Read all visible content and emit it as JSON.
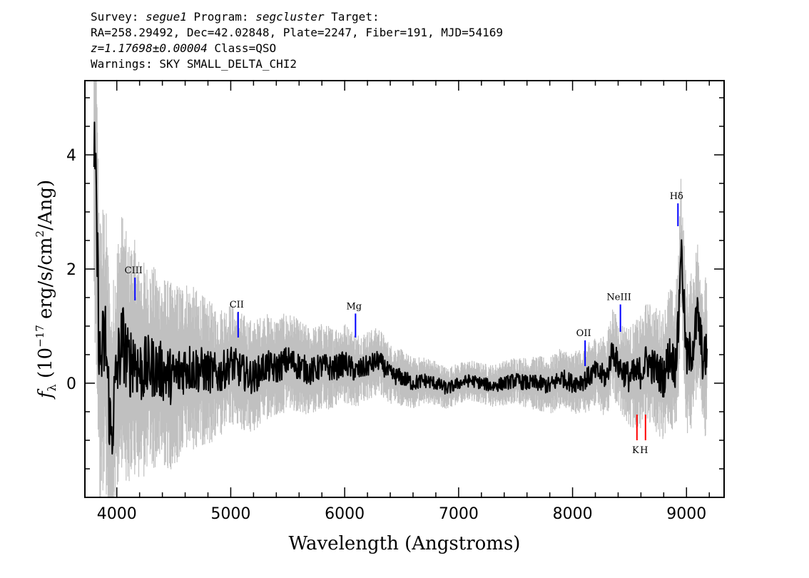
{
  "header": {
    "line1": {
      "survey_label": "Survey: ",
      "survey": "segue1",
      "program_label": " Program: ",
      "program": "segcluster",
      "target_label": " Target:"
    },
    "line2": "RA=258.29492, Dec=42.02848, Plate=2247, Fiber=191, MJD=54169",
    "line3": {
      "redshift": "z=1.17698±0.00004",
      "class": " Class=QSO"
    },
    "line4": "Warnings: SKY SMALL_DELTA_CHI2"
  },
  "chart_data": {
    "type": "line",
    "xlabel": "Wavelength (Angstroms)",
    "ylabel": "fλ (10^-17 erg/s/cm^2/Ang)",
    "ylabel_parts": {
      "f": "f",
      "lambda": "λ",
      "prefix": " (10",
      "exp1": "−17",
      "mid": " erg/s/cm",
      "exp2": "2",
      "suffix": "/Ang)"
    },
    "xlim": [
      3720,
      9330
    ],
    "ylim": [
      -2.0,
      5.3
    ],
    "x_ticks": [
      4000,
      5000,
      6000,
      7000,
      8000,
      9000
    ],
    "x_tick_labels": [
      "4000",
      "5000",
      "6000",
      "7000",
      "8000",
      "9000"
    ],
    "y_ticks": [
      0,
      2,
      4
    ],
    "y_tick_labels": [
      "0",
      "2",
      "4"
    ],
    "grid": false,
    "series": [
      {
        "role": "flux",
        "color": "#000000",
        "x": [
          3800,
          3820,
          3850,
          3900,
          3950,
          4000,
          4050,
          4100,
          4150,
          4200,
          4300,
          4400,
          4500,
          4600,
          4700,
          4800,
          4900,
          5000,
          5100,
          5200,
          5300,
          5400,
          5500,
          5600,
          5700,
          5800,
          5900,
          6000,
          6100,
          6200,
          6300,
          6400,
          6500,
          6600,
          6700,
          6800,
          6900,
          7000,
          7100,
          7200,
          7300,
          7400,
          7500,
          7600,
          7700,
          7800,
          7900,
          8000,
          8100,
          8200,
          8300,
          8350,
          8400,
          8500,
          8600,
          8650,
          8700,
          8800,
          8850,
          8900,
          8930,
          8950,
          9000,
          9050,
          9100,
          9150,
          9180
        ],
        "y": [
          4.0,
          3.0,
          0.3,
          0.8,
          -1.0,
          0.2,
          0.8,
          0.3,
          0.5,
          0.2,
          0.3,
          0.2,
          0.1,
          0.3,
          0.25,
          0.2,
          0.15,
          0.35,
          0.2,
          0.1,
          0.3,
          0.25,
          0.4,
          0.3,
          0.2,
          0.3,
          0.25,
          0.35,
          0.2,
          0.3,
          0.4,
          0.15,
          0.1,
          0.0,
          0.05,
          0.0,
          -0.1,
          0.0,
          0.05,
          0.0,
          -0.05,
          0.0,
          0.05,
          0.0,
          0.0,
          -0.05,
          0.1,
          0.0,
          0.05,
          0.2,
          0.1,
          0.6,
          0.3,
          0.1,
          0.2,
          0.4,
          0.3,
          0.1,
          0.5,
          0.3,
          1.0,
          2.5,
          0.4,
          0.6,
          1.2,
          0.3,
          0.6
        ]
      },
      {
        "role": "error",
        "color": "#c0c0c0",
        "x": [
          3800,
          3900,
          4000,
          4100,
          4200,
          4300,
          4400,
          4500,
          4600,
          4800,
          5000,
          5200,
          5400,
          5600,
          5800,
          6000,
          6200,
          6400,
          6600,
          6800,
          7000,
          7200,
          7400,
          7600,
          7800,
          8000,
          8200,
          8400,
          8600,
          8800,
          9000,
          9180
        ],
        "y": [
          1.6,
          1.4,
          1.3,
          1.2,
          1.1,
          1.0,
          0.95,
          0.9,
          0.85,
          0.7,
          0.6,
          0.55,
          0.5,
          0.45,
          0.42,
          0.4,
          0.35,
          0.3,
          0.25,
          0.22,
          0.2,
          0.2,
          0.22,
          0.25,
          0.28,
          0.3,
          0.35,
          0.45,
          0.55,
          0.65,
          0.75,
          0.8
        ]
      }
    ],
    "emission_lines": [
      {
        "label": "CIII",
        "x": 4160,
        "y1": 1.45,
        "y2": 1.85,
        "color": "#0000ff"
      },
      {
        "label": "CII",
        "x": 5065,
        "y1": 0.8,
        "y2": 1.25,
        "color": "#0000ff"
      },
      {
        "label": "Mg",
        "x": 6095,
        "y1": 0.8,
        "y2": 1.22,
        "color": "#0000ff"
      },
      {
        "label": "OII",
        "x": 8110,
        "y1": 0.3,
        "y2": 0.75,
        "color": "#0000ff"
      },
      {
        "label": "NeIII",
        "x": 8420,
        "y1": 0.9,
        "y2": 1.38,
        "color": "#0000ff"
      },
      {
        "label": "Hδ",
        "x": 8925,
        "y1": 2.75,
        "y2": 3.15,
        "color": "#0000ff"
      }
    ],
    "absorption_lines": [
      {
        "label": "K",
        "x": 8565,
        "y1": -1.0,
        "y2": -0.55,
        "color": "#ff0000"
      },
      {
        "label": "H",
        "x": 8640,
        "y1": -1.0,
        "y2": -0.55,
        "color": "#ff0000"
      }
    ]
  }
}
